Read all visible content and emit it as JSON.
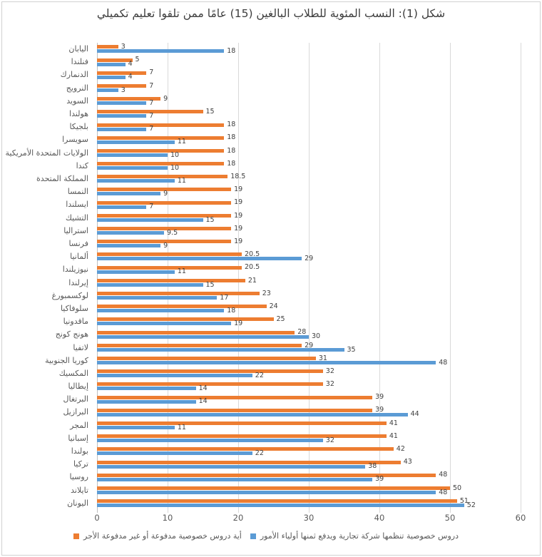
{
  "chart_data": {
    "type": "bar",
    "orientation": "horizontal",
    "title": "شكل (1): النسب المئوية للطلاب البالغين (15) عامًا ممن تلقوا تعليم تكميلي",
    "categories": [
      "اليابان",
      "فنلندا",
      "الدنمارك",
      "النرويج",
      "السويد",
      "هولندا",
      "بلجيكا",
      "سويسرا",
      "الولايات المتحدة الأمريكية",
      "كندا",
      "المملكة المتحدة",
      "النمسا",
      "ايسلندا",
      "التشيك",
      "استراليا",
      "فرنسا",
      "ألمانيا",
      "نيوزيلندا",
      "إيرلندا",
      "لوكسمبورغ",
      "سلوفاكيا",
      "ماقدونيا",
      "هونج كونج",
      "لاتفيا",
      "كوريا الجنوبية",
      "المكسيك",
      "إيطاليا",
      "البرتغال",
      "البرازيل",
      "المجر",
      "إسبانيا",
      "بولندا",
      "تركيا",
      "روسيا",
      "تايلاند",
      "اليونان"
    ],
    "series": [
      {
        "name": "أية دروس خصوصية مدفوعة أو غير مدفوعة الأجر",
        "color": "#ED7D31",
        "values": [
          3,
          5,
          7,
          7,
          9,
          15,
          18,
          18,
          18,
          18,
          18.5,
          19,
          19,
          19,
          19,
          19,
          20.5,
          20.5,
          21,
          23,
          24,
          25,
          28,
          29,
          31,
          32,
          32,
          39,
          39,
          41,
          41,
          42,
          43,
          48,
          50,
          51
        ]
      },
      {
        "name": "دروس خصوصية تنظمها شركة تجارية ويدفع ثمنها أولياء الأمور",
        "color": "#5B9BD5",
        "values": [
          18,
          4,
          4,
          3,
          7,
          7,
          7,
          11,
          10,
          10,
          11,
          9,
          7,
          15,
          9.5,
          9,
          29,
          11,
          15,
          17,
          18,
          19,
          30,
          35,
          48,
          22,
          14,
          14,
          44,
          11,
          32,
          22,
          38,
          39,
          48,
          52
        ]
      }
    ],
    "xlim": [
      0,
      60
    ],
    "xticks": [
      0,
      10,
      20,
      30,
      40,
      50,
      60
    ],
    "grid": true,
    "data_labels": true,
    "legend_position": "bottom"
  },
  "legend": {
    "items": [
      {
        "label": "أية دروس خصوصية مدفوعة أو غير مدفوعة الأجر",
        "color": "#ED7D31"
      },
      {
        "label": "دروس خصوصية تنظمها شركة تجارية ويدفع ثمنها أولياء الأمور",
        "color": "#5B9BD5"
      }
    ]
  },
  "colors": {
    "orange_series": "#ED7D31",
    "blue_series": "#5B9BD5",
    "gridline": "#D9D9D9",
    "axis_text": "#595959",
    "title_text": "#3D3D3D"
  }
}
